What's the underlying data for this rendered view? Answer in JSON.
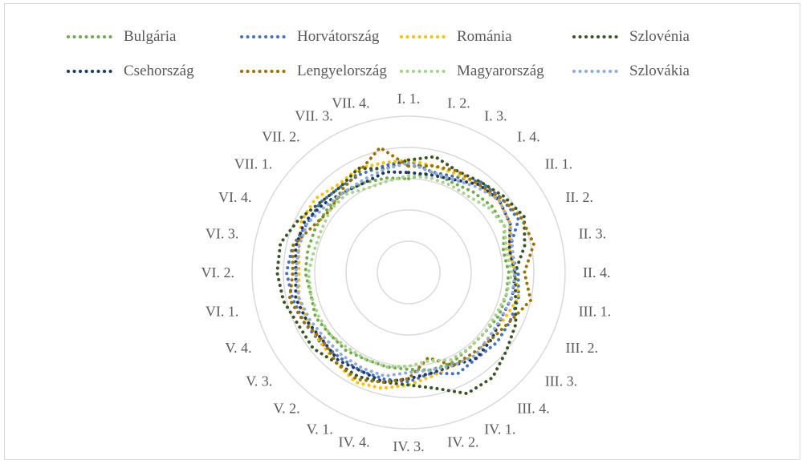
{
  "chart_data": {
    "type": "radar",
    "categories": [
      "I. 1.",
      "I. 2.",
      "I. 3.",
      "I. 4.",
      "II. 1.",
      "II. 2.",
      "II. 3.",
      "II. 4.",
      "III. 1.",
      "III. 2.",
      "III. 3.",
      "III. 4.",
      "IV. 1.",
      "IV. 2.",
      "IV. 3.",
      "IV. 4.",
      "V. 1.",
      "V. 2.",
      "V. 3.",
      "V. 4.",
      "VI. 1.",
      "VI. 2.",
      "VI. 3.",
      "VI. 4.",
      "VII. 1.",
      "VII. 2.",
      "VII. 3.",
      "VII. 4."
    ],
    "rlim": [
      0,
      5
    ],
    "grid": true,
    "legend_position": "top",
    "series": [
      {
        "name": "Bulgária",
        "color": "#70ad47",
        "values": [
          3.0,
          3.3,
          3.2,
          3.3,
          3.4,
          3.4,
          3.1,
          3.2,
          3.2,
          3.2,
          3.1,
          3.1,
          3.2,
          3.2,
          3.1,
          3.1,
          3.1,
          3.2,
          3.2,
          3.3,
          3.2,
          3.3,
          3.3,
          3.3,
          3.3,
          3.3,
          3.2,
          3.1
        ]
      },
      {
        "name": "Horvátország",
        "color": "#4472c4",
        "values": [
          3.6,
          3.3,
          3.4,
          3.7,
          3.8,
          3.9,
          3.3,
          3.5,
          3.6,
          3.6,
          3.6,
          3.5,
          3.6,
          3.3,
          3.5,
          3.5,
          3.5,
          3.5,
          3.6,
          3.7,
          3.8,
          3.9,
          3.8,
          3.6,
          3.6,
          3.5,
          3.5,
          3.5
        ]
      },
      {
        "name": "Románia",
        "color": "#ffc000",
        "values": [
          3.6,
          3.5,
          3.5,
          3.6,
          3.7,
          3.6,
          3.3,
          3.4,
          3.6,
          3.4,
          3.3,
          3.4,
          3.3,
          3.4,
          3.6,
          3.8,
          3.9,
          3.7,
          3.6,
          3.6,
          3.6,
          3.5,
          3.6,
          3.8,
          3.8,
          3.6,
          3.7,
          3.6
        ]
      },
      {
        "name": "Szlovénia",
        "color": "#375623",
        "values": [
          3.6,
          3.8,
          3.6,
          3.7,
          3.9,
          4.1,
          3.8,
          3.4,
          3.5,
          3.8,
          4.0,
          4.3,
          4.3,
          3.8,
          3.6,
          3.6,
          3.7,
          3.7,
          3.9,
          3.9,
          4.1,
          4.2,
          4.2,
          3.9,
          3.6,
          3.5,
          3.7,
          3.4
        ]
      },
      {
        "name": "Csehország",
        "color": "#203864",
        "values": [
          3.2,
          3.2,
          3.3,
          3.6,
          3.7,
          3.6,
          3.3,
          3.4,
          3.4,
          3.3,
          3.4,
          3.5,
          3.3,
          3.3,
          3.4,
          3.6,
          3.5,
          3.6,
          3.5,
          3.6,
          3.7,
          3.6,
          3.7,
          3.7,
          3.5,
          3.3,
          3.2,
          3.3
        ]
      },
      {
        "name": "Lengyelország",
        "color": "#997300",
        "values": [
          3.4,
          3.5,
          3.6,
          3.6,
          3.8,
          4.0,
          4.1,
          3.7,
          4.0,
          3.6,
          3.4,
          3.3,
          3.3,
          2.8,
          3.4,
          3.6,
          3.8,
          3.7,
          3.5,
          3.7,
          3.9,
          3.7,
          3.8,
          3.4,
          3.2,
          3.4,
          3.6,
          4.1
        ]
      },
      {
        "name": "Magyarország",
        "color": "#a9d18e",
        "values": [
          3.1,
          3.1,
          3.1,
          3.1,
          3.3,
          3.4,
          3.2,
          3.3,
          3.2,
          3.1,
          3.1,
          3.1,
          3.1,
          2.9,
          3.0,
          3.1,
          3.1,
          3.1,
          3.2,
          3.2,
          3.2,
          3.2,
          3.1,
          3.1,
          3.2,
          3.2,
          3.0,
          3.0
        ]
      },
      {
        "name": "Szlovákia",
        "color": "#8faadc",
        "values": [
          3.5,
          3.3,
          3.3,
          3.5,
          3.7,
          3.6,
          3.4,
          3.4,
          3.4,
          3.3,
          3.3,
          3.4,
          3.3,
          3.2,
          3.2,
          3.4,
          3.4,
          3.4,
          3.4,
          3.5,
          3.6,
          3.6,
          3.6,
          3.6,
          3.4,
          3.3,
          3.3,
          3.4
        ]
      }
    ]
  }
}
